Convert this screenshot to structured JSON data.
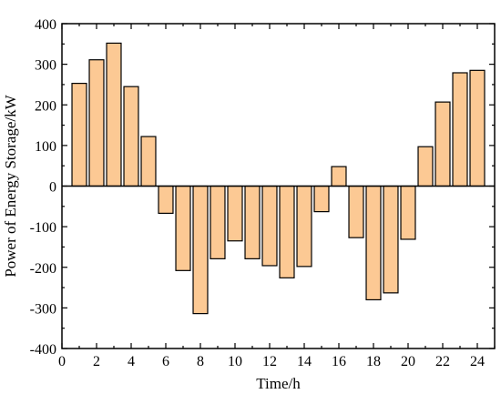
{
  "chart_data": {
    "type": "bar",
    "xlabel": "Time/h",
    "ylabel": "Power of Energy Storage/kW",
    "xlim": [
      0,
      25
    ],
    "ylim": [
      -400,
      400
    ],
    "xticks": [
      0,
      2,
      4,
      6,
      8,
      10,
      12,
      14,
      16,
      18,
      20,
      22,
      24
    ],
    "yticks": [
      -400,
      -300,
      -200,
      -100,
      0,
      100,
      200,
      300,
      400
    ],
    "x": [
      1,
      2,
      3,
      4,
      5,
      6,
      7,
      8,
      9,
      10,
      11,
      12,
      13,
      14,
      15,
      16,
      17,
      18,
      19,
      20,
      21,
      22,
      23,
      24
    ],
    "values": [
      253,
      311,
      352,
      245,
      122,
      -67,
      -208,
      -314,
      -179,
      -135,
      -179,
      -196,
      -226,
      -198,
      -63,
      48,
      -127,
      -280,
      -263,
      -131,
      97,
      207,
      279,
      285
    ],
    "bar_color": "#fcc994",
    "edge_color": "#000000",
    "grid": false,
    "legend": "none"
  }
}
